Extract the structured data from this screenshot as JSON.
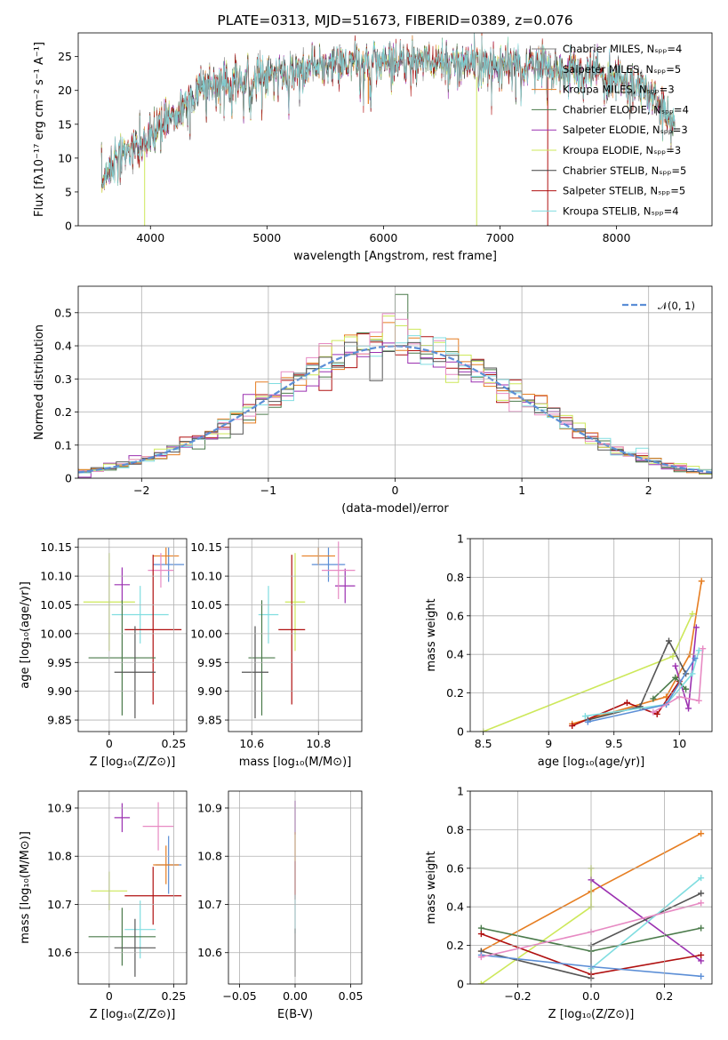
{
  "chart_data": [
    {
      "id": "spectrum",
      "type": "line",
      "title": "PLATE=0313, MJD=51673, FIBERID=0389, z=0.076",
      "xlabel": "wavelength [Angstrom, rest frame]",
      "ylabel": "Flux [fλ10⁻¹⁷ erg cm⁻² s⁻¹ A⁻¹]",
      "xlim": [
        3380,
        8820
      ],
      "ylim": [
        0,
        28.5
      ],
      "xticks": [
        4000,
        5000,
        6000,
        7000,
        8000
      ],
      "yticks": [
        0,
        5,
        10,
        15,
        20,
        25
      ],
      "grid": false,
      "legend_position": "top-right",
      "continuum": {
        "x": [
          3580,
          3650,
          3750,
          3850,
          3950,
          4050,
          4150,
          4250,
          4350,
          4450,
          4550,
          4700,
          4850,
          5000,
          5200,
          5400,
          5600,
          5800,
          6000,
          6200,
          6400,
          6600,
          6800,
          7000,
          7200,
          7400,
          7600,
          7800,
          8000,
          8200,
          8400,
          8500
        ],
        "y": [
          6,
          9,
          10.5,
          11.5,
          12,
          14,
          16,
          17,
          19,
          20,
          21,
          21.5,
          22,
          22.5,
          23,
          23.5,
          24,
          24,
          24.3,
          24.5,
          24.3,
          24.2,
          24.0,
          23.8,
          23.5,
          23.2,
          22.8,
          22.3,
          21.8,
          20.5,
          17.5,
          15
        ]
      },
      "series": [
        {
          "name": "Chabrier MILES, Nₛₚₚ=4",
          "color": "#808080"
        },
        {
          "name": "Salpeter MILES, Nₛₚₚ=5",
          "color": "#8c8c8c"
        },
        {
          "name": "Kroupa MILES, Nₛₚₚ=3",
          "color": "#e67e22"
        },
        {
          "name": "Chabrier ELODIE, Nₛₚₚ=4",
          "color": "#4a7a4a"
        },
        {
          "name": "Salpeter ELODIE, Nₛₚₚ=3",
          "color": "#9b30b0"
        },
        {
          "name": "Kroupa ELODIE, Nₛₚₚ=3",
          "color": "#cde85a"
        },
        {
          "name": "Chabrier STELIB, Nₛₚₚ=5",
          "color": "#404040"
        },
        {
          "name": "Salpeter STELIB, Nₛₚₚ=5",
          "color": "#b01010"
        },
        {
          "name": "Kroupa STELIB, Nₛₚₚ=4",
          "color": "#80dde0"
        }
      ]
    },
    {
      "id": "residuals",
      "type": "line",
      "xlabel": "(data-model)/error",
      "ylabel": "Normed distribution",
      "xlim": [
        -2.5,
        2.5
      ],
      "ylim": [
        0,
        0.58
      ],
      "xticks": [
        -2,
        -1,
        0,
        1,
        2
      ],
      "yticks": [
        0.0,
        0.1,
        0.2,
        0.3,
        0.4,
        0.5
      ],
      "grid": true,
      "legend_position": "top-right",
      "reference": {
        "name": "𝒩(0, 1)",
        "color": "#5b8ed6"
      },
      "bin_width": 0.1,
      "hist_colors": [
        "#4a7a4a",
        "#b01010",
        "#9b30b0",
        "#e67e22",
        "#cde85a",
        "#e78ac3",
        "#80dde0",
        "#555555"
      ]
    },
    {
      "id": "age-vs-z",
      "type": "scatter",
      "xlabel": "Z [log₁₀(Z/Z⊙)]",
      "ylabel": "age  [log₁₀(age/yr)]",
      "xlim": [
        -0.12,
        0.3
      ],
      "ylim": [
        9.83,
        10.165
      ],
      "xticks": [
        0.0,
        0.25
      ],
      "yticks": [
        9.85,
        9.9,
        9.95,
        10.0,
        10.05,
        10.1,
        10.15
      ],
      "ytick_labels": [
        "9.85",
        "9.90",
        "9.95",
        "10.00",
        "10.05",
        "10.10",
        "10.15"
      ],
      "grid": true,
      "points": [
        {
          "x": 0.0,
          "y": 10.055,
          "xerr": 0.1,
          "yerr": 0.085,
          "color": "#cde85a"
        },
        {
          "x": 0.05,
          "y": 10.085,
          "xerr": 0.03,
          "yerr": 0.03,
          "color": "#9b30b0"
        },
        {
          "x": 0.23,
          "y": 10.12,
          "xerr": 0.06,
          "yerr": 0.03,
          "color": "#5b8ed6"
        },
        {
          "x": 0.22,
          "y": 10.135,
          "xerr": 0.05,
          "yerr": 0.015,
          "color": "#e67e22"
        },
        {
          "x": 0.2,
          "y": 10.11,
          "xerr": 0.05,
          "yerr": 0.03,
          "color": "#e78ac3"
        },
        {
          "x": 0.12,
          "y": 10.033,
          "xerr": 0.11,
          "yerr": 0.05,
          "color": "#80dde0"
        },
        {
          "x": 0.17,
          "y": 10.007,
          "xerr": 0.11,
          "yerr": 0.13,
          "color": "#b01010"
        },
        {
          "x": 0.05,
          "y": 9.958,
          "xerr": 0.13,
          "yerr": 0.1,
          "color": "#4a7a4a"
        },
        {
          "x": 0.1,
          "y": 9.933,
          "xerr": 0.08,
          "yerr": 0.08,
          "color": "#555555"
        }
      ]
    },
    {
      "id": "age-vs-mass",
      "type": "scatter",
      "xlabel": "mass [log₁₀(M/M⊙)]",
      "ylabel": "",
      "xlim": [
        10.53,
        10.93
      ],
      "ylim": [
        9.83,
        10.165
      ],
      "xticks": [
        10.6,
        10.8
      ],
      "yticks": [
        9.85,
        9.9,
        9.95,
        10.0,
        10.05,
        10.1,
        10.15
      ],
      "ytick_labels": [
        "9.85",
        "9.90",
        "9.95",
        "10.00",
        "10.05",
        "10.10",
        "10.15"
      ],
      "grid": true,
      "points": [
        {
          "x": 10.73,
          "y": 10.055,
          "xerr": 0.03,
          "yerr": 0.085,
          "color": "#cde85a"
        },
        {
          "x": 10.88,
          "y": 10.083,
          "xerr": 0.03,
          "yerr": 0.03,
          "color": "#9b30b0"
        },
        {
          "x": 10.83,
          "y": 10.12,
          "xerr": 0.05,
          "yerr": 0.03,
          "color": "#5b8ed6"
        },
        {
          "x": 10.8,
          "y": 10.135,
          "xerr": 0.05,
          "yerr": 0.015,
          "color": "#e67e22"
        },
        {
          "x": 10.86,
          "y": 10.11,
          "xerr": 0.05,
          "yerr": 0.05,
          "color": "#e78ac3"
        },
        {
          "x": 10.65,
          "y": 10.033,
          "xerr": 0.03,
          "yerr": 0.05,
          "color": "#80dde0"
        },
        {
          "x": 10.72,
          "y": 10.007,
          "xerr": 0.04,
          "yerr": 0.13,
          "color": "#b01010"
        },
        {
          "x": 10.63,
          "y": 9.958,
          "xerr": 0.04,
          "yerr": 0.1,
          "color": "#4a7a4a"
        },
        {
          "x": 10.61,
          "y": 9.933,
          "xerr": 0.04,
          "yerr": 0.08,
          "color": "#555555"
        }
      ]
    },
    {
      "id": "massweight-vs-age",
      "type": "line",
      "xlabel": "age  [log₁₀(age/yr)]",
      "ylabel": "mass weight",
      "xlim": [
        8.4,
        10.25
      ],
      "ylim": [
        0,
        1
      ],
      "xticks": [
        8.5,
        9.0,
        9.5,
        10.0
      ],
      "yticks": [
        0.0,
        0.2,
        0.4,
        0.6,
        0.8,
        1.0
      ],
      "grid": true,
      "series": [
        {
          "color": "#cde85a",
          "x": [
            8.5,
            9.95,
            10.1
          ],
          "y": [
            0.0,
            0.39,
            0.61
          ]
        },
        {
          "color": "#e67e22",
          "x": [
            9.18,
            9.9,
            10.08,
            10.17
          ],
          "y": [
            0.04,
            0.18,
            0.4,
            0.78
          ]
        },
        {
          "color": "#b01010",
          "x": [
            9.18,
            9.6,
            9.83,
            10.0
          ],
          "y": [
            0.03,
            0.15,
            0.09,
            0.26
          ]
        },
        {
          "color": "#555555",
          "x": [
            9.3,
            9.7,
            9.92,
            10.05
          ],
          "y": [
            0.06,
            0.13,
            0.47,
            0.3
          ]
        },
        {
          "color": "#9b30b0",
          "x": [
            9.97,
            10.07,
            10.13
          ],
          "y": [
            0.34,
            0.12,
            0.54
          ]
        },
        {
          "color": "#4a7a4a",
          "x": [
            9.8,
            9.97,
            10.05
          ],
          "y": [
            0.17,
            0.28,
            0.22
          ]
        },
        {
          "color": "#80dde0",
          "x": [
            9.28,
            9.9,
            10.1,
            10.15
          ],
          "y": [
            0.08,
            0.14,
            0.3,
            0.42
          ]
        },
        {
          "color": "#5b8ed6",
          "x": [
            9.3,
            9.9,
            10.12
          ],
          "y": [
            0.05,
            0.14,
            0.38
          ]
        },
        {
          "color": "#e78ac3",
          "x": [
            9.8,
            10.0,
            10.15,
            10.18
          ],
          "y": [
            0.1,
            0.18,
            0.16,
            0.43
          ]
        }
      ]
    },
    {
      "id": "mass-vs-z",
      "type": "scatter",
      "xlabel": "Z [log₁₀(Z/Z⊙)]",
      "ylabel": "mass [log₁₀(M/M⊙)]",
      "xlim": [
        -0.12,
        0.3
      ],
      "ylim": [
        10.535,
        10.935
      ],
      "xticks": [
        0.0,
        0.25
      ],
      "yticks": [
        10.6,
        10.7,
        10.8,
        10.9
      ],
      "grid": true,
      "points": [
        {
          "x": 0.05,
          "y": 10.88,
          "xerr": 0.03,
          "yerr": 0.03,
          "color": "#9b30b0"
        },
        {
          "x": 0.19,
          "y": 10.862,
          "xerr": 0.06,
          "yerr": 0.05,
          "color": "#e78ac3"
        },
        {
          "x": 0.23,
          "y": 10.782,
          "xerr": 0.05,
          "yerr": 0.06,
          "color": "#5b8ed6"
        },
        {
          "x": 0.22,
          "y": 10.782,
          "xerr": 0.05,
          "yerr": 0.04,
          "color": "#e67e22"
        },
        {
          "x": 0.0,
          "y": 10.728,
          "xerr": 0.07,
          "yerr": 0.04,
          "color": "#cde85a"
        },
        {
          "x": 0.17,
          "y": 10.718,
          "xerr": 0.11,
          "yerr": 0.06,
          "color": "#b01010"
        },
        {
          "x": 0.12,
          "y": 10.648,
          "xerr": 0.06,
          "yerr": 0.06,
          "color": "#80dde0"
        },
        {
          "x": 0.05,
          "y": 10.633,
          "xerr": 0.13,
          "yerr": 0.06,
          "color": "#4a7a4a"
        },
        {
          "x": 0.1,
          "y": 10.61,
          "xerr": 0.08,
          "yerr": 0.06,
          "color": "#555555"
        }
      ]
    },
    {
      "id": "mass-vs-ebv",
      "type": "scatter",
      "xlabel": "E(B-V)",
      "ylabel": "",
      "xlim": [
        -0.06,
        0.06
      ],
      "ylim": [
        10.535,
        10.935
      ],
      "xticks": [
        -0.05,
        0.0,
        0.05
      ],
      "xtick_labels": [
        "−0.05",
        "0.00",
        "0.05"
      ],
      "yticks": [
        10.6,
        10.7,
        10.8,
        10.9
      ],
      "grid": true,
      "points": [
        {
          "x": 0.0,
          "y": 10.88,
          "xerr": 0,
          "yerr": 0.035,
          "color": "#9b30b0"
        },
        {
          "x": 0.0,
          "y": 10.82,
          "xerr": 0,
          "yerr": 0.03,
          "color": "#e67e22"
        },
        {
          "x": 0.0,
          "y": 10.75,
          "xerr": 0,
          "yerr": 0.04,
          "color": "#b01010"
        },
        {
          "x": 0.0,
          "y": 10.68,
          "xerr": 0,
          "yerr": 0.04,
          "color": "#80dde0"
        },
        {
          "x": 0.0,
          "y": 10.6,
          "xerr": 0,
          "yerr": 0.05,
          "color": "#555555"
        }
      ]
    },
    {
      "id": "massweight-vs-z",
      "type": "line",
      "xlabel": "Z [log₁₀(Z/Z⊙)]",
      "ylabel": "mass weight",
      "xlim": [
        -0.33,
        0.33
      ],
      "ylim": [
        0,
        1
      ],
      "xticks": [
        -0.2,
        0.0,
        0.2
      ],
      "xtick_labels": [
        "−0.2",
        "0.0",
        "0.2"
      ],
      "yticks": [
        0.0,
        0.2,
        0.4,
        0.6,
        0.8,
        1.0
      ],
      "grid": true,
      "series": [
        {
          "color": "#e67e22",
          "x": [
            -0.3,
            0.0,
            0.3
          ],
          "y": [
            0.17,
            0.48,
            0.78
          ]
        },
        {
          "color": "#cde85a",
          "x": [
            -0.3,
            0.0,
            0.0
          ],
          "y": [
            0.0,
            0.4,
            0.6
          ]
        },
        {
          "color": "#9b30b0",
          "x": [
            0.0,
            0.3
          ],
          "y": [
            0.54,
            0.12
          ]
        },
        {
          "color": "#555555",
          "x": [
            -0.3,
            0.0,
            0.0,
            0.3
          ],
          "y": [
            0.17,
            0.03,
            0.2,
            0.47
          ]
        },
        {
          "color": "#4a7a4a",
          "x": [
            -0.3,
            0.0,
            0.3
          ],
          "y": [
            0.29,
            0.17,
            0.29
          ]
        },
        {
          "color": "#b01010",
          "x": [
            -0.3,
            0.0,
            0.3
          ],
          "y": [
            0.26,
            0.05,
            0.15
          ]
        },
        {
          "color": "#80dde0",
          "x": [
            0.0,
            0.3
          ],
          "y": [
            0.08,
            0.55
          ]
        },
        {
          "color": "#5b8ed6",
          "x": [
            -0.3,
            0.0,
            0.3
          ],
          "y": [
            0.15,
            0.09,
            0.04
          ]
        },
        {
          "color": "#e78ac3",
          "x": [
            -0.3,
            0.0,
            0.3
          ],
          "y": [
            0.14,
            0.27,
            0.42
          ]
        }
      ]
    }
  ]
}
